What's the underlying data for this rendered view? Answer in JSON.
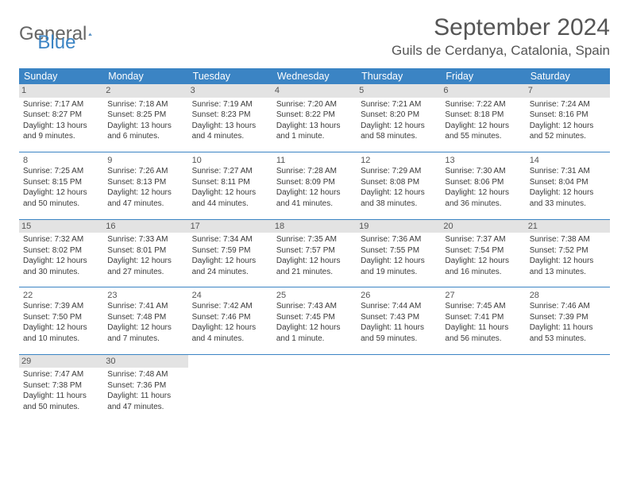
{
  "logo": {
    "word1": "General",
    "word2": "Blue"
  },
  "title": "September 2024",
  "location": "Guils de Cerdanya, Catalonia, Spain",
  "colors": {
    "header_bg": "#3b84c4",
    "header_fg": "#ffffff",
    "line": "#3b84c4",
    "shade": "#e3e3e3",
    "text": "#3a3a3a"
  },
  "weekdays": [
    "Sunday",
    "Monday",
    "Tuesday",
    "Wednesday",
    "Thursday",
    "Friday",
    "Saturday"
  ],
  "weeks": [
    [
      {
        "n": "1",
        "shade": true,
        "sunrise": "Sunrise: 7:17 AM",
        "sunset": "Sunset: 8:27 PM",
        "day1": "Daylight: 13 hours",
        "day2": "and 9 minutes."
      },
      {
        "n": "2",
        "shade": true,
        "sunrise": "Sunrise: 7:18 AM",
        "sunset": "Sunset: 8:25 PM",
        "day1": "Daylight: 13 hours",
        "day2": "and 6 minutes."
      },
      {
        "n": "3",
        "shade": true,
        "sunrise": "Sunrise: 7:19 AM",
        "sunset": "Sunset: 8:23 PM",
        "day1": "Daylight: 13 hours",
        "day2": "and 4 minutes."
      },
      {
        "n": "4",
        "shade": true,
        "sunrise": "Sunrise: 7:20 AM",
        "sunset": "Sunset: 8:22 PM",
        "day1": "Daylight: 13 hours",
        "day2": "and 1 minute."
      },
      {
        "n": "5",
        "shade": true,
        "sunrise": "Sunrise: 7:21 AM",
        "sunset": "Sunset: 8:20 PM",
        "day1": "Daylight: 12 hours",
        "day2": "and 58 minutes."
      },
      {
        "n": "6",
        "shade": true,
        "sunrise": "Sunrise: 7:22 AM",
        "sunset": "Sunset: 8:18 PM",
        "day1": "Daylight: 12 hours",
        "day2": "and 55 minutes."
      },
      {
        "n": "7",
        "shade": true,
        "sunrise": "Sunrise: 7:24 AM",
        "sunset": "Sunset: 8:16 PM",
        "day1": "Daylight: 12 hours",
        "day2": "and 52 minutes."
      }
    ],
    [
      {
        "n": "8",
        "shade": false,
        "sunrise": "Sunrise: 7:25 AM",
        "sunset": "Sunset: 8:15 PM",
        "day1": "Daylight: 12 hours",
        "day2": "and 50 minutes."
      },
      {
        "n": "9",
        "shade": false,
        "sunrise": "Sunrise: 7:26 AM",
        "sunset": "Sunset: 8:13 PM",
        "day1": "Daylight: 12 hours",
        "day2": "and 47 minutes."
      },
      {
        "n": "10",
        "shade": false,
        "sunrise": "Sunrise: 7:27 AM",
        "sunset": "Sunset: 8:11 PM",
        "day1": "Daylight: 12 hours",
        "day2": "and 44 minutes."
      },
      {
        "n": "11",
        "shade": false,
        "sunrise": "Sunrise: 7:28 AM",
        "sunset": "Sunset: 8:09 PM",
        "day1": "Daylight: 12 hours",
        "day2": "and 41 minutes."
      },
      {
        "n": "12",
        "shade": false,
        "sunrise": "Sunrise: 7:29 AM",
        "sunset": "Sunset: 8:08 PM",
        "day1": "Daylight: 12 hours",
        "day2": "and 38 minutes."
      },
      {
        "n": "13",
        "shade": false,
        "sunrise": "Sunrise: 7:30 AM",
        "sunset": "Sunset: 8:06 PM",
        "day1": "Daylight: 12 hours",
        "day2": "and 36 minutes."
      },
      {
        "n": "14",
        "shade": false,
        "sunrise": "Sunrise: 7:31 AM",
        "sunset": "Sunset: 8:04 PM",
        "day1": "Daylight: 12 hours",
        "day2": "and 33 minutes."
      }
    ],
    [
      {
        "n": "15",
        "shade": true,
        "sunrise": "Sunrise: 7:32 AM",
        "sunset": "Sunset: 8:02 PM",
        "day1": "Daylight: 12 hours",
        "day2": "and 30 minutes."
      },
      {
        "n": "16",
        "shade": true,
        "sunrise": "Sunrise: 7:33 AM",
        "sunset": "Sunset: 8:01 PM",
        "day1": "Daylight: 12 hours",
        "day2": "and 27 minutes."
      },
      {
        "n": "17",
        "shade": true,
        "sunrise": "Sunrise: 7:34 AM",
        "sunset": "Sunset: 7:59 PM",
        "day1": "Daylight: 12 hours",
        "day2": "and 24 minutes."
      },
      {
        "n": "18",
        "shade": true,
        "sunrise": "Sunrise: 7:35 AM",
        "sunset": "Sunset: 7:57 PM",
        "day1": "Daylight: 12 hours",
        "day2": "and 21 minutes."
      },
      {
        "n": "19",
        "shade": true,
        "sunrise": "Sunrise: 7:36 AM",
        "sunset": "Sunset: 7:55 PM",
        "day1": "Daylight: 12 hours",
        "day2": "and 19 minutes."
      },
      {
        "n": "20",
        "shade": true,
        "sunrise": "Sunrise: 7:37 AM",
        "sunset": "Sunset: 7:54 PM",
        "day1": "Daylight: 12 hours",
        "day2": "and 16 minutes."
      },
      {
        "n": "21",
        "shade": true,
        "sunrise": "Sunrise: 7:38 AM",
        "sunset": "Sunset: 7:52 PM",
        "day1": "Daylight: 12 hours",
        "day2": "and 13 minutes."
      }
    ],
    [
      {
        "n": "22",
        "shade": false,
        "sunrise": "Sunrise: 7:39 AM",
        "sunset": "Sunset: 7:50 PM",
        "day1": "Daylight: 12 hours",
        "day2": "and 10 minutes."
      },
      {
        "n": "23",
        "shade": false,
        "sunrise": "Sunrise: 7:41 AM",
        "sunset": "Sunset: 7:48 PM",
        "day1": "Daylight: 12 hours",
        "day2": "and 7 minutes."
      },
      {
        "n": "24",
        "shade": false,
        "sunrise": "Sunrise: 7:42 AM",
        "sunset": "Sunset: 7:46 PM",
        "day1": "Daylight: 12 hours",
        "day2": "and 4 minutes."
      },
      {
        "n": "25",
        "shade": false,
        "sunrise": "Sunrise: 7:43 AM",
        "sunset": "Sunset: 7:45 PM",
        "day1": "Daylight: 12 hours",
        "day2": "and 1 minute."
      },
      {
        "n": "26",
        "shade": false,
        "sunrise": "Sunrise: 7:44 AM",
        "sunset": "Sunset: 7:43 PM",
        "day1": "Daylight: 11 hours",
        "day2": "and 59 minutes."
      },
      {
        "n": "27",
        "shade": false,
        "sunrise": "Sunrise: 7:45 AM",
        "sunset": "Sunset: 7:41 PM",
        "day1": "Daylight: 11 hours",
        "day2": "and 56 minutes."
      },
      {
        "n": "28",
        "shade": false,
        "sunrise": "Sunrise: 7:46 AM",
        "sunset": "Sunset: 7:39 PM",
        "day1": "Daylight: 11 hours",
        "day2": "and 53 minutes."
      }
    ],
    [
      {
        "n": "29",
        "shade": true,
        "sunrise": "Sunrise: 7:47 AM",
        "sunset": "Sunset: 7:38 PM",
        "day1": "Daylight: 11 hours",
        "day2": "and 50 minutes."
      },
      {
        "n": "30",
        "shade": true,
        "sunrise": "Sunrise: 7:48 AM",
        "sunset": "Sunset: 7:36 PM",
        "day1": "Daylight: 11 hours",
        "day2": "and 47 minutes."
      },
      null,
      null,
      null,
      null,
      null
    ]
  ]
}
